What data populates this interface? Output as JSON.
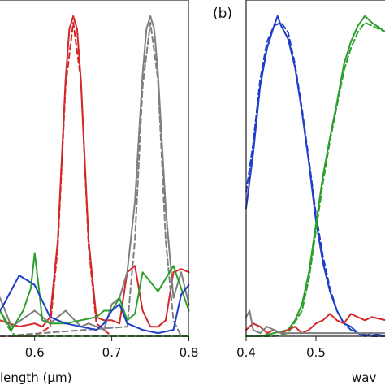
{
  "chart_data": [
    {
      "panel_label": "",
      "type": "line",
      "xlabel": "length (μm)",
      "xlim": [
        0.555,
        0.8
      ],
      "ylim": [
        0,
        1.02
      ],
      "xticks": [
        {
          "value": 0.6,
          "label": "0.6"
        },
        {
          "value": 0.7,
          "label": "0.7"
        },
        {
          "value": 0.8,
          "label": "0.8"
        }
      ],
      "series": [
        {
          "color": "#d62728",
          "dash": "solid",
          "x": [
            0.555,
            0.58,
            0.6,
            0.61,
            0.62,
            0.63,
            0.64,
            0.645,
            0.65,
            0.655,
            0.66,
            0.67,
            0.68,
            0.69,
            0.7,
            0.71,
            0.72,
            0.73,
            0.74,
            0.75,
            0.76,
            0.77,
            0.78,
            0.79,
            0.8
          ],
          "y": [
            0.05,
            0.03,
            0.04,
            0.03,
            0.06,
            0.3,
            0.8,
            0.96,
            1.0,
            0.96,
            0.8,
            0.3,
            0.06,
            0.05,
            0.05,
            0.04,
            0.2,
            0.22,
            0.08,
            0.03,
            0.03,
            0.05,
            0.2,
            0.21,
            0.2
          ]
        },
        {
          "color": "#d62728",
          "dash": "dashed",
          "x": [
            0.555,
            0.6,
            0.62,
            0.63,
            0.64,
            0.65,
            0.66,
            0.67,
            0.68,
            0.7,
            0.72,
            0.8
          ],
          "y": [
            0.0,
            0.0,
            0.03,
            0.28,
            0.78,
            0.98,
            0.8,
            0.28,
            0.04,
            0.0,
            0.0,
            0.0
          ]
        },
        {
          "color": "#7f7f7f",
          "dash": "solid",
          "x": [
            0.555,
            0.57,
            0.6,
            0.62,
            0.64,
            0.66,
            0.67,
            0.69,
            0.7,
            0.71,
            0.72,
            0.73,
            0.74,
            0.745,
            0.75,
            0.755,
            0.76,
            0.77,
            0.78,
            0.79,
            0.8
          ],
          "y": [
            0.12,
            0.03,
            0.08,
            0.04,
            0.08,
            0.03,
            0.04,
            0.02,
            0.1,
            0.12,
            0.2,
            0.42,
            0.82,
            0.96,
            1.0,
            0.96,
            0.82,
            0.4,
            0.12,
            0.2,
            0.1
          ]
        },
        {
          "color": "#7f7f7f",
          "dash": "dashed",
          "x": [
            0.555,
            0.72,
            0.73,
            0.74,
            0.75,
            0.76,
            0.77,
            0.78,
            0.79,
            0.8
          ],
          "y": [
            0.0,
            0.03,
            0.3,
            0.78,
            0.98,
            0.8,
            0.3,
            0.05,
            0.0,
            0.0
          ]
        },
        {
          "color": "#2ca02c",
          "dash": "solid",
          "x": [
            0.555,
            0.57,
            0.585,
            0.595,
            0.6,
            0.605,
            0.61,
            0.62,
            0.64,
            0.66,
            0.68,
            0.69,
            0.7,
            0.71,
            0.72,
            0.73,
            0.74,
            0.76,
            0.78,
            0.79,
            0.8
          ],
          "y": [
            0.08,
            0.02,
            0.08,
            0.15,
            0.26,
            0.16,
            0.05,
            0.04,
            0.04,
            0.05,
            0.06,
            0.08,
            0.08,
            0.12,
            0.05,
            0.07,
            0.2,
            0.14,
            0.22,
            0.15,
            0.08
          ]
        },
        {
          "color": "#2ca02c",
          "dash": "dashed",
          "x": [
            0.555,
            0.565,
            0.575,
            0.6,
            0.8
          ],
          "y": [
            0.08,
            0.03,
            0.0,
            0.0,
            0.0
          ]
        },
        {
          "color": "#1f3fc9",
          "dash": "solid",
          "x": [
            0.555,
            0.56,
            0.58,
            0.6,
            0.62,
            0.64,
            0.66,
            0.68,
            0.69,
            0.7,
            0.71,
            0.72,
            0.74,
            0.76,
            0.78,
            0.79,
            0.8
          ],
          "y": [
            0.08,
            0.1,
            0.19,
            0.16,
            0.06,
            0.04,
            0.03,
            0.02,
            0.04,
            0.08,
            0.1,
            0.04,
            0.02,
            0.01,
            0.02,
            0.13,
            0.16
          ]
        }
      ]
    },
    {
      "panel_label": "(b)",
      "type": "line",
      "xlabel": "wav",
      "xlim": [
        0.4,
        0.65
      ],
      "ylim": [
        0,
        1.02
      ],
      "xticks": [
        {
          "value": 0.4,
          "label": "0.4"
        },
        {
          "value": 0.5,
          "label": "0.5"
        }
      ],
      "series": [
        {
          "color": "#1f3fc9",
          "dash": "solid",
          "x": [
            0.4,
            0.41,
            0.42,
            0.43,
            0.44,
            0.445,
            0.45,
            0.46,
            0.47,
            0.48,
            0.49,
            0.5,
            0.51,
            0.52,
            0.53,
            0.54,
            0.55,
            0.56,
            0.57,
            0.58,
            0.6,
            0.65
          ],
          "y": [
            0.4,
            0.57,
            0.78,
            0.9,
            0.97,
            1.0,
            0.97,
            0.93,
            0.84,
            0.7,
            0.54,
            0.36,
            0.23,
            0.14,
            0.08,
            0.04,
            0.03,
            0.01,
            0.0,
            0.01,
            0.0,
            0.0
          ]
        },
        {
          "color": "#1f3fc9",
          "dash": "dashed",
          "x": [
            0.4,
            0.41,
            0.42,
            0.43,
            0.44,
            0.45,
            0.46,
            0.47,
            0.48,
            0.49,
            0.5,
            0.51,
            0.52,
            0.53,
            0.54,
            0.55,
            0.56,
            0.58,
            0.65
          ],
          "y": [
            0.45,
            0.6,
            0.8,
            0.92,
            0.97,
            0.98,
            0.95,
            0.85,
            0.71,
            0.55,
            0.38,
            0.25,
            0.15,
            0.08,
            0.04,
            0.02,
            0.01,
            0.0,
            0.0
          ]
        },
        {
          "color": "#2ca02c",
          "dash": "solid",
          "x": [
            0.4,
            0.42,
            0.44,
            0.46,
            0.47,
            0.48,
            0.49,
            0.5,
            0.51,
            0.52,
            0.53,
            0.54,
            0.55,
            0.56,
            0.57,
            0.58,
            0.6,
            0.65
          ],
          "y": [
            0.0,
            0.0,
            0.01,
            0.02,
            0.05,
            0.1,
            0.2,
            0.35,
            0.5,
            0.62,
            0.73,
            0.85,
            0.92,
            0.97,
            1.0,
            0.98,
            0.95,
            0.9
          ]
        },
        {
          "color": "#2ca02c",
          "dash": "dashed",
          "x": [
            0.4,
            0.44,
            0.46,
            0.48,
            0.49,
            0.5,
            0.51,
            0.52,
            0.53,
            0.54,
            0.55,
            0.56,
            0.57,
            0.58,
            0.6,
            0.65
          ],
          "y": [
            0.0,
            0.0,
            0.01,
            0.08,
            0.18,
            0.33,
            0.48,
            0.61,
            0.72,
            0.83,
            0.9,
            0.95,
            0.98,
            0.97,
            0.95,
            0.9
          ]
        },
        {
          "color": "#d62728",
          "dash": "solid",
          "x": [
            0.4,
            0.41,
            0.42,
            0.43,
            0.44,
            0.45,
            0.46,
            0.47,
            0.48,
            0.49,
            0.5,
            0.51,
            0.52,
            0.53,
            0.54,
            0.55,
            0.56,
            0.57,
            0.58,
            0.6
          ],
          "y": [
            0.02,
            0.04,
            0.03,
            0.01,
            0.02,
            0.01,
            0.02,
            0.03,
            0.01,
            0.02,
            0.04,
            0.05,
            0.07,
            0.05,
            0.04,
            0.07,
            0.06,
            0.05,
            0.06,
            0.05
          ]
        },
        {
          "color": "#7f7f7f",
          "dash": "solid",
          "x": [
            0.4,
            0.405,
            0.41,
            0.42,
            0.43,
            0.44,
            0.45,
            0.46,
            0.5,
            0.55,
            0.6
          ],
          "y": [
            0.06,
            0.08,
            0.02,
            0.01,
            0.03,
            0.02,
            0.01,
            0.01,
            0.01,
            0.01,
            0.01
          ]
        }
      ]
    }
  ]
}
